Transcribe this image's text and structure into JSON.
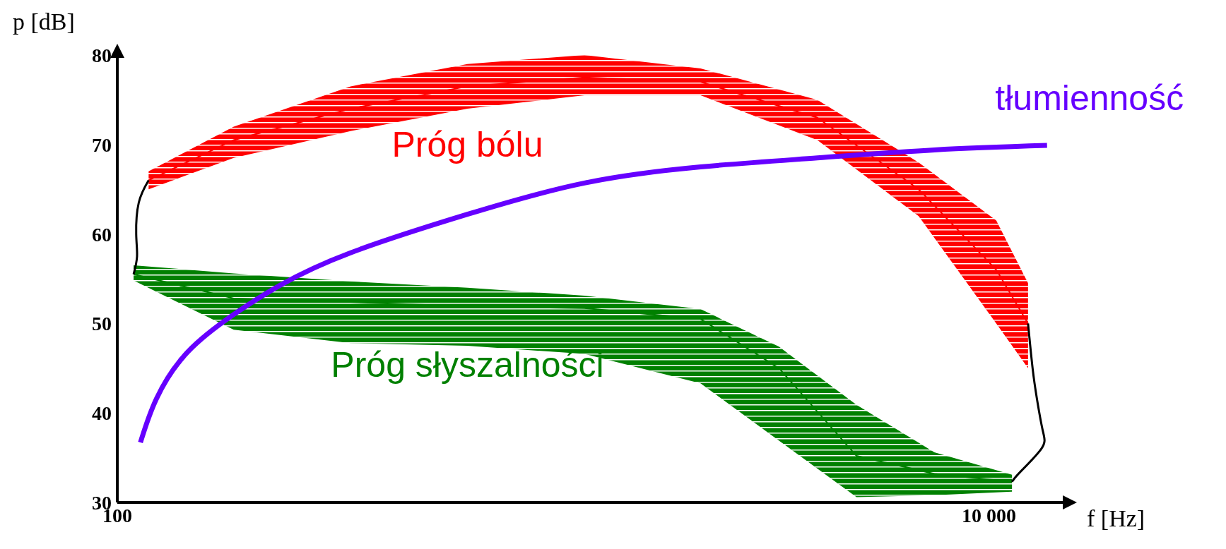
{
  "chart_data": {
    "type": "line",
    "xlabel": "f [Hz]",
    "ylabel": "p [dB]",
    "log": "x",
    "xlim": [
      100,
      15000
    ],
    "xticks": [
      100,
      {
        "value": 10000,
        "label": "10 000"
      }
    ],
    "ylim": [
      30,
      80
    ],
    "yticks": [
      30,
      40,
      50,
      60,
      70,
      80
    ],
    "marker": "none",
    "line_style": "solid",
    "series": [
      {
        "name": "Próg bólu",
        "color": "#ff0000",
        "x": [
          118,
          185,
          343,
          636,
          1180,
          2180,
          4040,
          6900,
          10400,
          12300
        ],
        "values": [
          66,
          70.5,
          74,
          76.5,
          77.5,
          77,
          73,
          65,
          56,
          50
        ],
        "lower": [
          65,
          68.5,
          71.5,
          74,
          75.5,
          75.5,
          70.5,
          62,
          50,
          45
        ],
        "upper": [
          67,
          72,
          76.5,
          79,
          80,
          78.5,
          75,
          68,
          61.5,
          54.5
        ]
      },
      {
        "name": "Próg słyszalności",
        "color": "#008000",
        "x": [
          109,
          185,
          343,
          636,
          1180,
          2180,
          3300,
          4970,
          7500,
          11300
        ],
        "values": [
          55.5,
          52.8,
          52.4,
          51.9,
          51.7,
          50.5,
          45,
          35.2,
          33.2,
          32.3
        ],
        "lower": [
          54.8,
          49.3,
          47.8,
          47.5,
          46.6,
          43.3,
          36.9,
          30.6,
          30.8,
          31.2
        ],
        "upper": [
          56.5,
          55.6,
          54.7,
          54,
          53.1,
          51.6,
          47.4,
          40.9,
          35.6,
          33.1
        ]
      },
      {
        "color": "#000000",
        "x": [
          118,
          112,
          110.5,
          111,
          109
        ],
        "values": [
          66,
          63.5,
          60,
          57.5,
          55.5
        ]
      },
      {
        "color": "#000000",
        "x": [
          12300,
          12600,
          12900,
          13300,
          13200,
          11800,
          11300
        ],
        "values": [
          50,
          45,
          41.5,
          38,
          36,
          33.4,
          32.3
        ]
      },
      {
        "name": "tłumienność",
        "color": "#6600ff",
        "x": [
          113,
          123,
          145,
          185,
          237,
          343,
          636,
          1180,
          2180,
          4040,
          7500,
          13600
        ],
        "values": [
          36.7,
          41.6,
          46.8,
          51,
          54.3,
          57.9,
          62.2,
          65.7,
          67.5,
          68.5,
          69.4,
          69.9
        ]
      }
    ]
  }
}
